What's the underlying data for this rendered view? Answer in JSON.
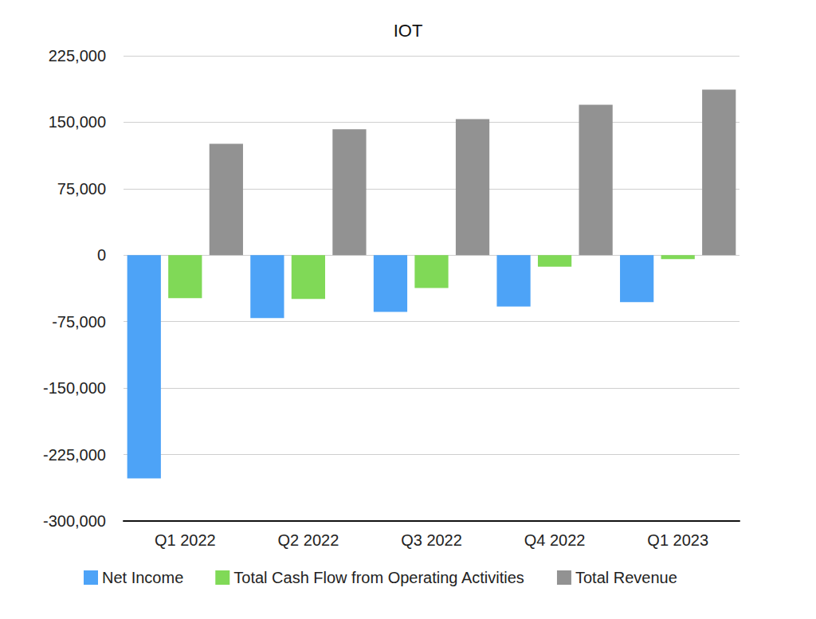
{
  "chart_data": {
    "type": "bar",
    "title": "IOT",
    "categories": [
      "Q1 2022",
      "Q2 2022",
      "Q3 2022",
      "Q4 2022",
      "Q1 2023"
    ],
    "series": [
      {
        "name": "Net Income",
        "color": "#4da3f7",
        "values": [
          -252000,
          -71000,
          -64000,
          -58000,
          -53000
        ]
      },
      {
        "name": "Total Cash Flow from Operating Activities",
        "color": "#80d957",
        "values": [
          -48500,
          -49500,
          -37000,
          -13000,
          -4500
        ]
      },
      {
        "name": "Total Revenue",
        "color": "#929292",
        "values": [
          125700,
          142000,
          153600,
          169800,
          186800
        ]
      }
    ],
    "ylim": [
      -300000,
      225000
    ],
    "yticks": [
      {
        "value": -300000,
        "label": "-300,000"
      },
      {
        "value": -225000,
        "label": "-225,000"
      },
      {
        "value": -150000,
        "label": "-150,000"
      },
      {
        "value": -75000,
        "label": "-75,000"
      },
      0,
      {
        "value": 75000,
        "label": "75,000"
      },
      {
        "value": 150000,
        "label": "150,000"
      },
      {
        "value": 225000,
        "label": "225,000"
      }
    ],
    "grid": true,
    "legend": "bottom"
  }
}
